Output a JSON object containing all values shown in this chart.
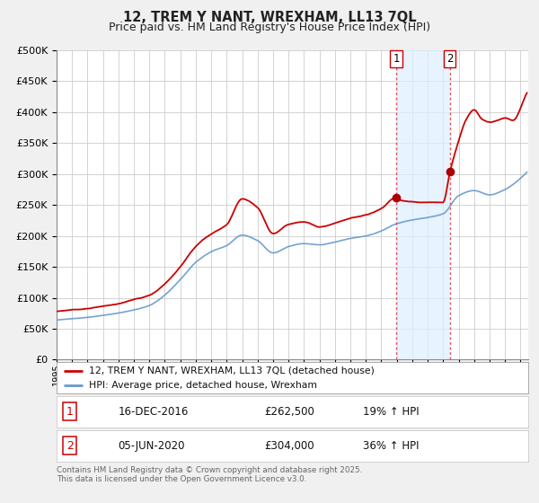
{
  "title": "12, TREM Y NANT, WREXHAM, LL13 7QL",
  "subtitle": "Price paid vs. HM Land Registry's House Price Index (HPI)",
  "title_fontsize": 10.5,
  "subtitle_fontsize": 9,
  "ylim": [
    0,
    500000
  ],
  "yticks": [
    0,
    50000,
    100000,
    150000,
    200000,
    250000,
    300000,
    350000,
    400000,
    450000,
    500000
  ],
  "xlim_start": 1995.0,
  "xlim_end": 2025.5,
  "background_color": "#f0f0f0",
  "plot_bg_color": "#ffffff",
  "grid_color": "#cccccc",
  "line1_color": "#cc0000",
  "line2_color": "#6699cc",
  "marker_color": "#aa0000",
  "vline_color": "#dd4444",
  "shade_color": "#ddeeff",
  "event1_x": 2016.96,
  "event2_x": 2020.43,
  "event1_y": 262500,
  "event2_y": 304000,
  "legend_label1": "12, TREM Y NANT, WREXHAM, LL13 7QL (detached house)",
  "legend_label2": "HPI: Average price, detached house, Wrexham",
  "table_row1": [
    "1",
    "16-DEC-2016",
    "£262,500",
    "19% ↑ HPI"
  ],
  "table_row2": [
    "2",
    "05-JUN-2020",
    "£304,000",
    "36% ↑ HPI"
  ],
  "footer_text": "Contains HM Land Registry data © Crown copyright and database right 2025.\nThis data is licensed under the Open Government Licence v3.0."
}
